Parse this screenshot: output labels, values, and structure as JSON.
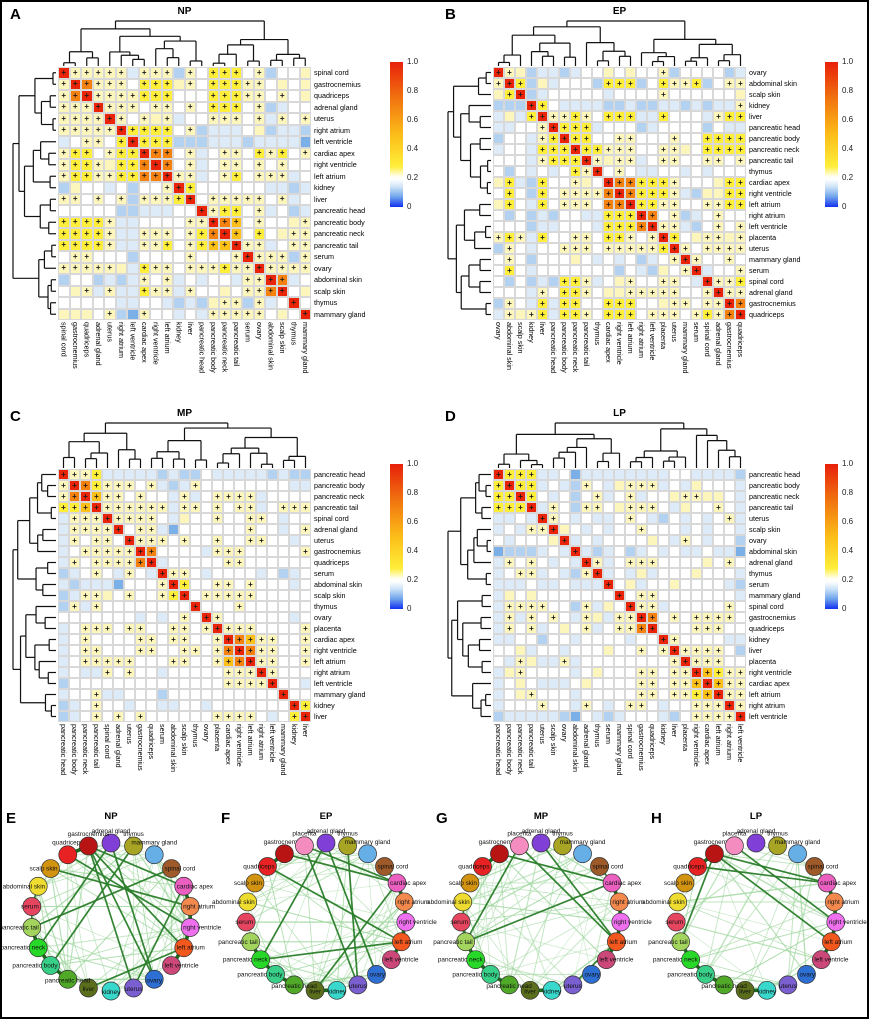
{
  "heatmap_codes": {
    "R": {
      "value": 1.0,
      "color": "#ea2409",
      "plus": true
    },
    "O": {
      "value": 0.55,
      "color": "#f5820f",
      "plus": true
    },
    "D": {
      "value": 0.42,
      "color": "#fcc018",
      "plus": true
    },
    "Y": {
      "value": 0.3,
      "color": "#ffee3a",
      "plus": true
    },
    "y": {
      "value": 0.2,
      "color": "#fcf6bc",
      "plus": true
    },
    "q": {
      "value": 0.2,
      "color": "#fcf6bc",
      "plus": false
    },
    "w": {
      "value": 0.1,
      "color": "#ffffff",
      "plus": false
    },
    "c": {
      "value": 0.07,
      "color": "#ddebf8",
      "plus": false
    },
    "b": {
      "value": 0.04,
      "color": "#b3d2f2",
      "plus": false
    },
    "B": {
      "value": 0.01,
      "color": "#7aafe8",
      "plus": false
    }
  },
  "colorbar": {
    "ticks": [
      "1.0",
      "0.8",
      "0.6",
      "0.4",
      "0.2",
      "0"
    ],
    "gradient_stops": [
      [
        "#e8200b",
        0
      ],
      [
        "#f0700f",
        24
      ],
      [
        "#fcbd18",
        50
      ],
      [
        "#ffee3a",
        72
      ],
      [
        "#fffef2",
        79
      ],
      [
        "#ffffff",
        81
      ],
      [
        "#cfe4f7",
        86
      ],
      [
        "#6fa4ec",
        93
      ],
      [
        "#1230f0",
        100
      ]
    ]
  },
  "network_node_colors": {
    "adrenal gland": "#8040d8",
    "thymus": "#a8a424",
    "mammary gland": "#66aee6",
    "spinal cord": "#9e5a28",
    "cardiac apex": "#ea5fc0",
    "right atrium": "#f4894e",
    "right ventricle": "#ee70ee",
    "left atrium": "#f2571e",
    "left ventricle": "#cc4878",
    "ovary": "#2e6fd4",
    "uterus": "#7a5fd0",
    "kidney": "#38d8cc",
    "liver": "#5a6e1c",
    "pancreatic head": "#50aa28",
    "pancreatic body": "#38d088",
    "pancreatic neck": "#28d828",
    "pancreatic tail": "#a2d45e",
    "serum": "#e64560",
    "abdominal skin": "#eedd30",
    "scalp skin": "#d29310",
    "quadriceps": "#e82222",
    "gastrocnemius": "#b81414",
    "placenta": "#f48cc0"
  },
  "network_edge_colors": {
    "chain": "#1a6b1a",
    "strong": "#2a7d2a",
    "thin": "#9ed69e"
  },
  "chart_data": [
    {
      "panel_letter": "A",
      "type": "heatmap",
      "title": "NP",
      "value_range": [
        0,
        1
      ],
      "dendro_seed": 3,
      "labels": [
        "spinal cord",
        "gastrocnemius",
        "quadriceps",
        "adrenal gland",
        "uterus",
        "right atrium",
        "left ventricle",
        "cardiac apex",
        "right ventricle",
        "left atrium",
        "kidney",
        "liver",
        "pancreatic head",
        "pancreatic body",
        "pancreatic neck",
        "pancreatic tail",
        "serum",
        "ovary",
        "abdominal skin",
        "scalp skin",
        "thymus",
        "mammary gland"
      ],
      "upper_triangle_rows": [
        "RyyyyycyyybywYYYwybwwq",
        "ROyyywYYYqywYYYyywqwq",
        "RyyyyYYYwwwYYYyywywq",
        "RyyywyywywYYYwybcww",
        "Rywyqycwwyyywycywy",
        "RYYYYwybcccwqbccb",
        "RYYYbbbcccbccccB",
        "ROOwycwyywYyYwy",
        "ROwycwyywywyww",
        "RyycwyYwyyycw",
        "RYwwwwwwccbc",
        "Rwyyyyywycw",
        "RyYYwycwbc",
        "RODwywwqy",
        "RDwYwqyy",
        "Ryycwyy",
        "Ryyyby",
        "Ryyyy",
        "ROcw",
        "Rwq",
        "Rw",
        "R"
      ]
    },
    {
      "panel_letter": "B",
      "type": "heatmap",
      "title": "EP",
      "value_range": [
        0,
        1
      ],
      "dendro_seed": 5,
      "labels": [
        "ovary",
        "abdominal skin",
        "scalp skin",
        "kidney",
        "liver",
        "pancreatic head",
        "pancreatic body",
        "pancreatic neck",
        "pancreatic tail",
        "thymus",
        "cardiac apex",
        "right ventricle",
        "left atrium",
        "right atrium",
        "left ventricle",
        "placenta",
        "uterus",
        "mammary gland",
        "serum",
        "spinal cord",
        "adrenal gland",
        "gastrocnemius",
        "quadriceps"
      ],
      "upper_triangle_rows": [
        "Ryqbccbcwwqwqwwybwwwwbc",
        "RYbqcwwwbYYYbwYyyYbwyy",
        "Rbcwwwwwcwwwwywwwwwwq",
        "RYwccccbbcbbccbcbccy",
        "RyyYywYYYccYwwwcyYY",
        "RYYYcwwwbcwwwwbwcc",
        "RYYwwyywwwywwYYYY",
        "RYYyyywwyyqwYYYY",
        "Ryqyycwyywwyywy",
        "Rwywccwwcwcwww",
        "ROOYYYywwwqYY",
        "ROYYYycbqqYY",
        "RYYyywwyyYY",
        "ROwybcwyww",
        "Ryycbwywy",
        "RYwqyyqy",
        "Rywyyyy",
        "Rywwyw",
        "Rcwwy",
        "RyyY",
        "Ryy",
        "RO",
        "R"
      ]
    },
    {
      "panel_letter": "C",
      "type": "heatmap",
      "title": "MP",
      "value_range": [
        0,
        1
      ],
      "dendro_seed": 9,
      "labels": [
        "pancreatic head",
        "pancreatic body",
        "pancreatic neck",
        "pancreatic tail",
        "spinal cord",
        "adrenal gland",
        "uterus",
        "gastrocnemius",
        "quadriceps",
        "serum",
        "abdominal skin",
        "scalp skin",
        "thymus",
        "ovary",
        "placenta",
        "cardiac apex",
        "right ventricle",
        "left atrium",
        "right atrium",
        "left ventricle",
        "mammary gland",
        "kidney",
        "liver"
      ],
      "upper_triangle_rows": [
        "RyyYcccccbcbbwcccccbcbb",
        "ROYyyywycbcywwwwwwwwcc",
        "RDyywywwcycwyyyycwwww",
        "Ryyyyyycyywywyycwyyy",
        "Ryyyywcqwwywwyywcww",
        "RwyycBwwwwwwywwcwy",
        "Ryyywywwywwyywwcw",
        "ROwwwwcyyywwwwwy",
        "Rcwwwwwyywwwwww",
        "Ryywcwwwwcwbcw",
        "RYwwyywywwwcw",
        "Rwyyyyywwwww",
        "Rwwwywwwwww",
        "Rywwwwwwcw",
        "Ryyywwwwy",
        "RODyywwy",
        "ROyywwy",
        "Ryywwy",
        "Rywww",
        "Rwwc",
        "Rww",
        "RY",
        "R"
      ]
    },
    {
      "panel_letter": "D",
      "type": "heatmap",
      "title": "LP",
      "value_range": [
        0,
        1
      ],
      "dendro_seed": 13,
      "labels": [
        "pancreatic head",
        "pancreatic body",
        "pancreatic neck",
        "pancreatic tail",
        "uterus",
        "scalp skin",
        "ovary",
        "abdominal skin",
        "adrenal gland",
        "thymus",
        "serum",
        "mammary gland",
        "spinal cord",
        "gastrocnemius",
        "quadriceps",
        "kidney",
        "liver",
        "placenta",
        "right ventricle",
        "cardiac apex",
        "left atrium",
        "right atrium",
        "left ventricle"
      ],
      "upper_triangle_rows": [
        "RYYYccwBccccccccwwccccb",
        "RYYcwcbywcqyyycwcqwwwc",
        "RYwcwbwycwycwwqyyqqwc",
        "Rcywbyywqyyywcqwwywc",
        "Rywcwccwywcbwcwcwyc",
        "Rqwcwcwwywwwcwcwwc",
        "Rcwcwwwwqwcywcwwb",
        "RcbcwbcwcwccwccB",
        "Rycwyyywwwwqwyw",
        "Rcwcqcwwwqwwwc",
        "Rwqcwwqwwwwcb",
        "Rwyywwwwwwwc",
        "Ryycwwwwwyw",
        "ROwywyyyyw",
        "Rwwwyyyww",
        "Rywwwwcc",
        "Ryyyywb",
        "Ryyyww",
        "RDYyy",
        "RDyy",
        "Ryy",
        "Ry",
        "R"
      ]
    },
    {
      "panel_letter": "E",
      "type": "network",
      "title": "NP",
      "seed": 21,
      "thin_edge_count": 85,
      "nodes": [
        "adrenal gland",
        "thymus",
        "mammary gland",
        "spinal cord",
        "cardiac apex",
        "right atrium",
        "right ventricle",
        "left atrium",
        "left ventricle",
        "ovary",
        "uterus",
        "kidney",
        "liver",
        "pancreatic head",
        "pancreatic body",
        "pancreatic neck",
        "pancreatic tail",
        "serum",
        "abdominal skin",
        "scalp skin",
        "quadriceps",
        "gastrocnemius"
      ],
      "thick_chains": [
        [
          "cardiac apex",
          "right atrium",
          "right ventricle",
          "left atrium",
          "left ventricle"
        ],
        [
          "pancreatic tail",
          "pancreatic neck",
          "pancreatic body",
          "pancreatic head"
        ],
        [
          "quadriceps",
          "gastrocnemius"
        ]
      ],
      "strong_edges": [
        [
          "gastrocnemius",
          "cardiac apex"
        ],
        [
          "gastrocnemius",
          "left atrium"
        ],
        [
          "gastrocnemius",
          "ovary"
        ],
        [
          "gastrocnemius",
          "uterus"
        ],
        [
          "quadriceps",
          "right ventricle"
        ],
        [
          "adrenal gland",
          "pancreatic neck"
        ],
        [
          "adrenal gland",
          "ovary"
        ],
        [
          "spinal cord",
          "pancreatic tail"
        ],
        [
          "serum",
          "pancreatic tail"
        ],
        [
          "liver",
          "left atrium"
        ],
        [
          "uterus",
          "cardiac apex"
        ],
        [
          "thymus",
          "pancreatic body"
        ],
        [
          "scalp skin",
          "right atrium"
        ],
        [
          "abdominal skin",
          "serum"
        ]
      ]
    },
    {
      "panel_letter": "F",
      "type": "network",
      "title": "EP",
      "seed": 22,
      "thin_edge_count": 75,
      "nodes": [
        "adrenal gland",
        "thymus",
        "mammary gland",
        "spinal cord",
        "cardiac apex",
        "right atrium",
        "right ventricle",
        "left atrium",
        "left ventricle",
        "ovary",
        "uterus",
        "kidney",
        "liver",
        "pancreatic head",
        "pancreatic body",
        "pancreatic neck",
        "pancreatic tail",
        "serum",
        "abdominal skin",
        "scalp skin",
        "quadriceps",
        "gastrocnemius",
        "placenta"
      ],
      "thick_chains": [
        [
          "cardiac apex",
          "right atrium",
          "right ventricle",
          "left atrium",
          "left ventricle"
        ],
        [
          "pancreatic tail",
          "pancreatic neck",
          "pancreatic body",
          "pancreatic head"
        ],
        [
          "quadriceps",
          "gastrocnemius"
        ],
        [
          "liver",
          "kidney"
        ]
      ],
      "strong_edges": [
        [
          "gastrocnemius",
          "cardiac apex"
        ],
        [
          "placenta",
          "uterus"
        ],
        [
          "placenta",
          "cardiac apex"
        ],
        [
          "adrenal gland",
          "pancreatic neck"
        ],
        [
          "left atrium",
          "pancreatic neck"
        ],
        [
          "liver",
          "cardiac apex"
        ],
        [
          "adrenal gland",
          "ovary"
        ],
        [
          "spinal cord",
          "cardiac apex"
        ],
        [
          "thymus",
          "uterus"
        ],
        [
          "quadriceps",
          "left atrium"
        ]
      ]
    },
    {
      "panel_letter": "G",
      "type": "network",
      "title": "MP",
      "seed": 23,
      "thin_edge_count": 65,
      "nodes": [
        "adrenal gland",
        "thymus",
        "mammary gland",
        "spinal cord",
        "cardiac apex",
        "right atrium",
        "right ventricle",
        "left atrium",
        "left ventricle",
        "ovary",
        "uterus",
        "kidney",
        "liver",
        "pancreatic head",
        "pancreatic body",
        "pancreatic neck",
        "pancreatic tail",
        "serum",
        "abdominal skin",
        "scalp skin",
        "quadriceps",
        "gastrocnemius",
        "placenta"
      ],
      "thick_chains": [
        [
          "cardiac apex",
          "right atrium",
          "right ventricle",
          "left atrium",
          "left ventricle"
        ],
        [
          "pancreatic tail",
          "pancreatic neck",
          "pancreatic body",
          "pancreatic head"
        ],
        [
          "quadriceps",
          "gastrocnemius"
        ],
        [
          "liver",
          "kidney"
        ]
      ],
      "strong_edges": [
        [
          "placenta",
          "pancreatic tail"
        ],
        [
          "adrenal gland",
          "left atrium"
        ],
        [
          "gastrocnemius",
          "cardiac apex"
        ],
        [
          "pancreatic tail",
          "serum"
        ],
        [
          "pancreatic tail",
          "abdominal skin"
        ],
        [
          "uterus",
          "left atrium"
        ],
        [
          "placenta",
          "left atrium"
        ],
        [
          "spinal cord",
          "cardiac apex"
        ],
        [
          "pancreatic tail",
          "cardiac apex"
        ]
      ]
    },
    {
      "panel_letter": "H",
      "type": "network",
      "title": "LP",
      "seed": 24,
      "thin_edge_count": 42,
      "nodes": [
        "adrenal gland",
        "thymus",
        "mammary gland",
        "spinal cord",
        "cardiac apex",
        "right atrium",
        "right ventricle",
        "left atrium",
        "left ventricle",
        "ovary",
        "uterus",
        "kidney",
        "liver",
        "pancreatic head",
        "pancreatic body",
        "pancreatic neck",
        "pancreatic tail",
        "serum",
        "abdominal skin",
        "scalp skin",
        "quadriceps",
        "gastrocnemius",
        "placenta"
      ],
      "thick_chains": [
        [
          "cardiac apex",
          "right atrium",
          "right ventricle",
          "left atrium",
          "left ventricle"
        ],
        [
          "pancreatic tail",
          "pancreatic neck",
          "pancreatic body",
          "pancreatic head"
        ],
        [
          "quadriceps",
          "gastrocnemius"
        ],
        [
          "liver",
          "kidney"
        ]
      ],
      "strong_edges": [
        [
          "gastrocnemius",
          "cardiac apex"
        ],
        [
          "quadriceps",
          "cardiac apex"
        ],
        [
          "gastrocnemius",
          "left atrium"
        ],
        [
          "gastrocnemius",
          "pancreatic tail"
        ],
        [
          "placenta",
          "right ventricle"
        ],
        [
          "spinal cord",
          "cardiac apex"
        ]
      ]
    }
  ]
}
